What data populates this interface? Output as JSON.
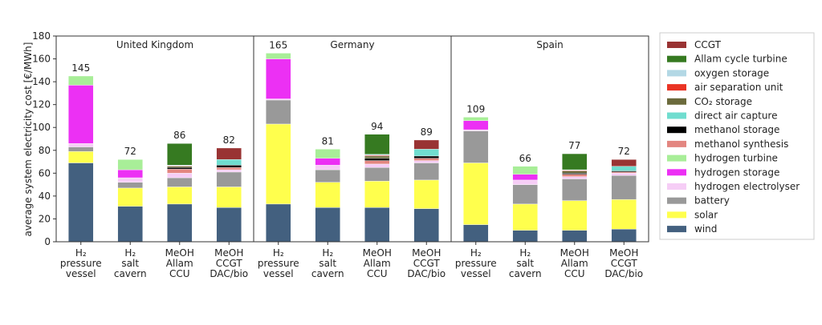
{
  "chart_data": {
    "type": "bar",
    "stacked": true,
    "title": "",
    "xlabel": "",
    "ylabel": "average system electricity cost [€/MWh]",
    "ylim": [
      0,
      180
    ],
    "yticks": [
      0,
      20,
      40,
      60,
      80,
      100,
      120,
      140,
      160,
      180
    ],
    "grid": false,
    "legend_position": "right",
    "panels": [
      "United Kingdom",
      "Germany",
      "Spain"
    ],
    "categories": [
      [
        "H₂",
        "pressure",
        "vessel"
      ],
      [
        "H₂",
        "salt",
        "cavern"
      ],
      [
        "MeOH",
        "Allam",
        "CCU"
      ],
      [
        "MeOH",
        "CCGT",
        "DAC/bio"
      ]
    ],
    "components": [
      {
        "name": "wind",
        "color": "#43607f"
      },
      {
        "name": "solar",
        "color": "#ffff4d"
      },
      {
        "name": "battery",
        "color": "#999999"
      },
      {
        "name": "hydrogen electrolyser",
        "color": "#f6cdf6"
      },
      {
        "name": "hydrogen storage",
        "color": "#ec30f4"
      },
      {
        "name": "hydrogen turbine",
        "color": "#a8ee98"
      },
      {
        "name": "methanol synthesis",
        "color": "#e38680"
      },
      {
        "name": "methanol storage",
        "color": "#000000"
      },
      {
        "name": "direct air capture",
        "color": "#70ddcf"
      },
      {
        "name": "CO₂ storage",
        "color": "#6b6a3c"
      },
      {
        "name": "air separation unit",
        "color": "#ea3424"
      },
      {
        "name": "oxygen storage",
        "color": "#b3d8e5"
      },
      {
        "name": "Allam cycle turbine",
        "color": "#367a21"
      },
      {
        "name": "CCGT",
        "color": "#993333"
      }
    ],
    "series_values_order": [
      "wind",
      "solar",
      "battery",
      "hydrogen electrolyser",
      "hydrogen storage",
      "hydrogen turbine",
      "methanol synthesis",
      "methanol storage",
      "direct air capture",
      "CO₂ storage",
      "air separation unit",
      "oxygen storage",
      "Allam cycle turbine",
      "CCGT"
    ],
    "bars": [
      {
        "panel": "United Kingdom",
        "category": 0,
        "total_label": "145",
        "values": [
          69,
          10,
          4,
          3,
          51,
          8,
          0,
          0,
          0,
          0,
          0,
          0,
          0,
          0
        ]
      },
      {
        "panel": "United Kingdom",
        "category": 1,
        "total_label": "72",
        "values": [
          31,
          16,
          5,
          4,
          7,
          9,
          0,
          0,
          0,
          0,
          0,
          0,
          0,
          0
        ]
      },
      {
        "panel": "United Kingdom",
        "category": 2,
        "total_label": "86",
        "values": [
          33,
          15,
          8,
          4,
          0,
          0,
          3.5,
          1.5,
          0,
          1,
          0.5,
          0.5,
          19,
          0
        ]
      },
      {
        "panel": "United Kingdom",
        "category": 3,
        "total_label": "82",
        "values": [
          30,
          18,
          13,
          2,
          0,
          0,
          2,
          2,
          5,
          0,
          0,
          0,
          0,
          10
        ]
      },
      {
        "panel": "Germany",
        "category": 0,
        "total_label": "165",
        "values": [
          33,
          70,
          21,
          1,
          35,
          5,
          0,
          0,
          0,
          0,
          0,
          0,
          0,
          0
        ]
      },
      {
        "panel": "Germany",
        "category": 1,
        "total_label": "81",
        "values": [
          30,
          22,
          11,
          4,
          6,
          8,
          0,
          0,
          0,
          0,
          0,
          0,
          0,
          0
        ]
      },
      {
        "panel": "Germany",
        "category": 2,
        "total_label": "94",
        "values": [
          30,
          23,
          12,
          3,
          0,
          0,
          3,
          2,
          0,
          2,
          0.7,
          0.8,
          17.5,
          0
        ]
      },
      {
        "panel": "Germany",
        "category": 3,
        "total_label": "89",
        "values": [
          29,
          25,
          15,
          2,
          0,
          0,
          2,
          2,
          6,
          0,
          0,
          0,
          0,
          8
        ]
      },
      {
        "panel": "Spain",
        "category": 0,
        "total_label": "109",
        "values": [
          15,
          54,
          28,
          1,
          8,
          3,
          0,
          0,
          0,
          0,
          0,
          0,
          0,
          0
        ]
      },
      {
        "panel": "Spain",
        "category": 1,
        "total_label": "66",
        "values": [
          10,
          23,
          17,
          4,
          5,
          7,
          0,
          0,
          0,
          0,
          0,
          0,
          0,
          0
        ]
      },
      {
        "panel": "Spain",
        "category": 2,
        "total_label": "77",
        "values": [
          10,
          26,
          19,
          2,
          0,
          0,
          2,
          1,
          0,
          2,
          0.5,
          0.5,
          14,
          0
        ]
      },
      {
        "panel": "Spain",
        "category": 3,
        "total_label": "72",
        "values": [
          11,
          26,
          21,
          2,
          0,
          0,
          1,
          1,
          4,
          0,
          0,
          0,
          0,
          6
        ]
      }
    ],
    "legend_order": [
      "CCGT",
      "Allam cycle turbine",
      "oxygen storage",
      "air separation unit",
      "CO₂ storage",
      "direct air capture",
      "methanol storage",
      "methanol synthesis",
      "hydrogen turbine",
      "hydrogen storage",
      "hydrogen electrolyser",
      "battery",
      "solar",
      "wind"
    ]
  }
}
